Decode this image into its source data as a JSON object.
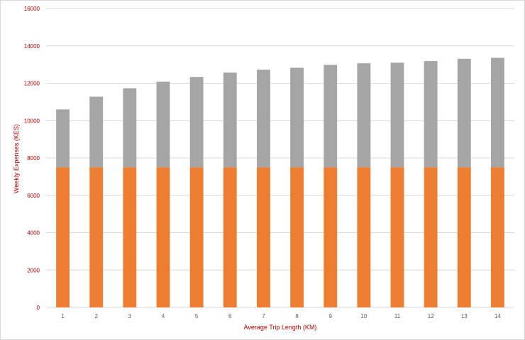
{
  "chart_data": {
    "type": "bar",
    "stacked": true,
    "title": "",
    "xlabel": "Average Trip Length (KM)",
    "ylabel": "Weekly Expenses (KES)",
    "categories": [
      "1",
      "2",
      "3",
      "4",
      "5",
      "6",
      "7",
      "8",
      "9",
      "10",
      "11",
      "12",
      "13",
      "14"
    ],
    "series": [
      {
        "color": "#ed7d31",
        "values": [
          7500,
          7500,
          7500,
          7500,
          7500,
          7500,
          7500,
          7500,
          7500,
          7500,
          7500,
          7500,
          7500,
          7500
        ]
      },
      {
        "color": "#a5a5a5",
        "values": [
          3100,
          3780,
          4230,
          4580,
          4830,
          5070,
          5220,
          5330,
          5480,
          5570,
          5600,
          5690,
          5810,
          5860
        ]
      }
    ],
    "ylim": [
      0,
      16000
    ],
    "yticks": [
      0,
      2000,
      4000,
      6000,
      8000,
      10000,
      12000,
      14000,
      16000
    ],
    "grid": true,
    "legend": "none"
  }
}
